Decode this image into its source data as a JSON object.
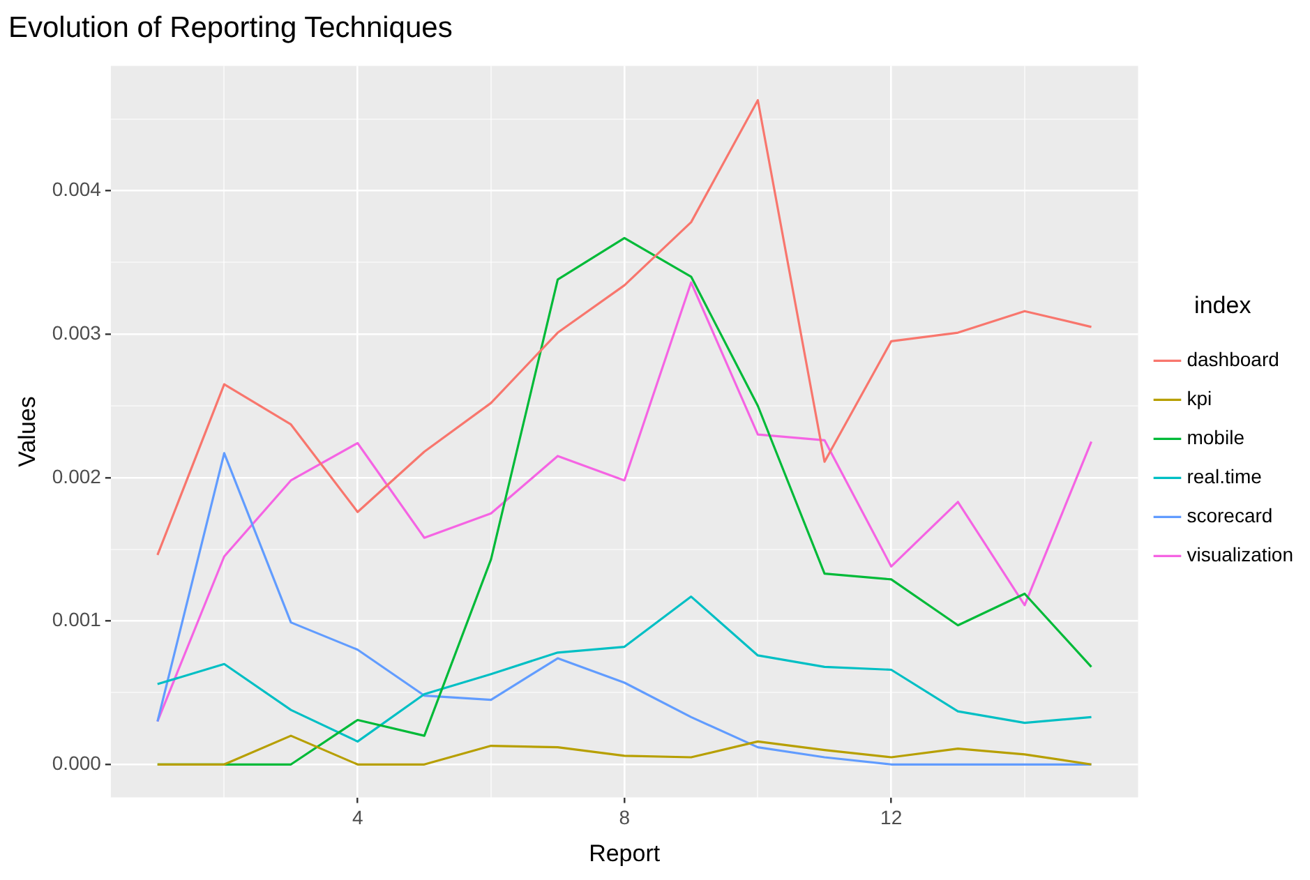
{
  "chart_data": {
    "type": "line",
    "title": "Evolution of Reporting Techniques",
    "xlabel": "Report",
    "ylabel": "Values",
    "legend_title": "index",
    "legend": "right",
    "grid": true,
    "marker": "none",
    "line_style": "solid",
    "x": [
      1,
      2,
      3,
      4,
      5,
      6,
      7,
      8,
      9,
      10,
      11,
      12,
      13,
      14,
      15
    ],
    "xlim": [
      0.3,
      15.7
    ],
    "xticks": [
      {
        "value": 2,
        "label": null
      },
      4,
      {
        "value": 6,
        "label": null
      },
      8,
      {
        "value": 10,
        "label": null
      },
      12,
      {
        "value": 14,
        "label": null
      }
    ],
    "ylim": [
      -0.00023,
      0.00487
    ],
    "yticks": [
      {
        "value": 0,
        "label": "0.000"
      },
      {
        "value": 0.0005,
        "label": null
      },
      0.001,
      {
        "value": 0.0015,
        "label": null
      },
      0.002,
      {
        "value": 0.0025,
        "label": null
      },
      0.003,
      {
        "value": 0.0035,
        "label": null
      },
      0.004,
      {
        "value": 0.0045,
        "label": null
      }
    ],
    "series": [
      {
        "name": "dashboard",
        "color": "#f8766d",
        "values": [
          0.00146,
          0.00265,
          0.00237,
          0.00176,
          0.00218,
          0.00252,
          0.00301,
          0.00334,
          0.00378,
          0.00463,
          0.00211,
          0.00295,
          0.00301,
          0.00316,
          0.00305
        ]
      },
      {
        "name": "kpi",
        "color": "#b79f00",
        "values": [
          0,
          0,
          0.0002,
          0,
          0,
          0.00013,
          0.00012,
          6e-05,
          5e-05,
          0.00016,
          0.0001,
          5e-05,
          0.00011,
          7e-05,
          0
        ]
      },
      {
        "name": "mobile",
        "color": "#00ba38",
        "values": [
          0,
          0,
          0,
          0.00031,
          0.0002,
          0.00143,
          0.00338,
          0.00367,
          0.0034,
          0.0025,
          0.00133,
          0.00129,
          0.00097,
          0.00119,
          0.00068
        ]
      },
      {
        "name": "real.time",
        "color": "#00bfc4",
        "values": [
          0.00056,
          0.0007,
          0.00038,
          0.00016,
          0.00049,
          0.00063,
          0.00078,
          0.00082,
          0.00117,
          0.00076,
          0.00068,
          0.00066,
          0.00037,
          0.00029,
          0.00033
        ]
      },
      {
        "name": "scorecard",
        "color": "#619cff",
        "values": [
          0.0003,
          0.00217,
          0.00099,
          0.0008,
          0.00048,
          0.00045,
          0.00074,
          0.00057,
          0.00033,
          0.00012,
          5e-05,
          0,
          0,
          0,
          0
        ]
      },
      {
        "name": "visualization",
        "color": "#f564e3",
        "values": [
          0.0003,
          0.00145,
          0.00198,
          0.00224,
          0.00158,
          0.00175,
          0.00215,
          0.00198,
          0.00336,
          0.0023,
          0.00226,
          0.00138,
          0.00183,
          0.00111,
          0.00225
        ]
      }
    ]
  }
}
